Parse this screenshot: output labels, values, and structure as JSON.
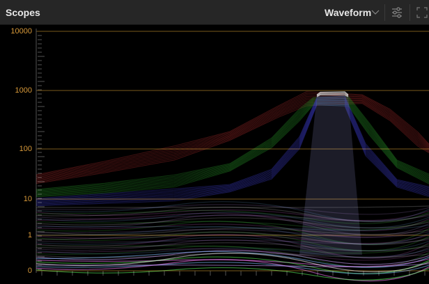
{
  "header": {
    "title": "Scopes",
    "mode": "Waveform"
  },
  "scope": {
    "scale_labels": [
      "10000",
      "1000",
      "100",
      "10",
      "1",
      "0"
    ]
  }
}
